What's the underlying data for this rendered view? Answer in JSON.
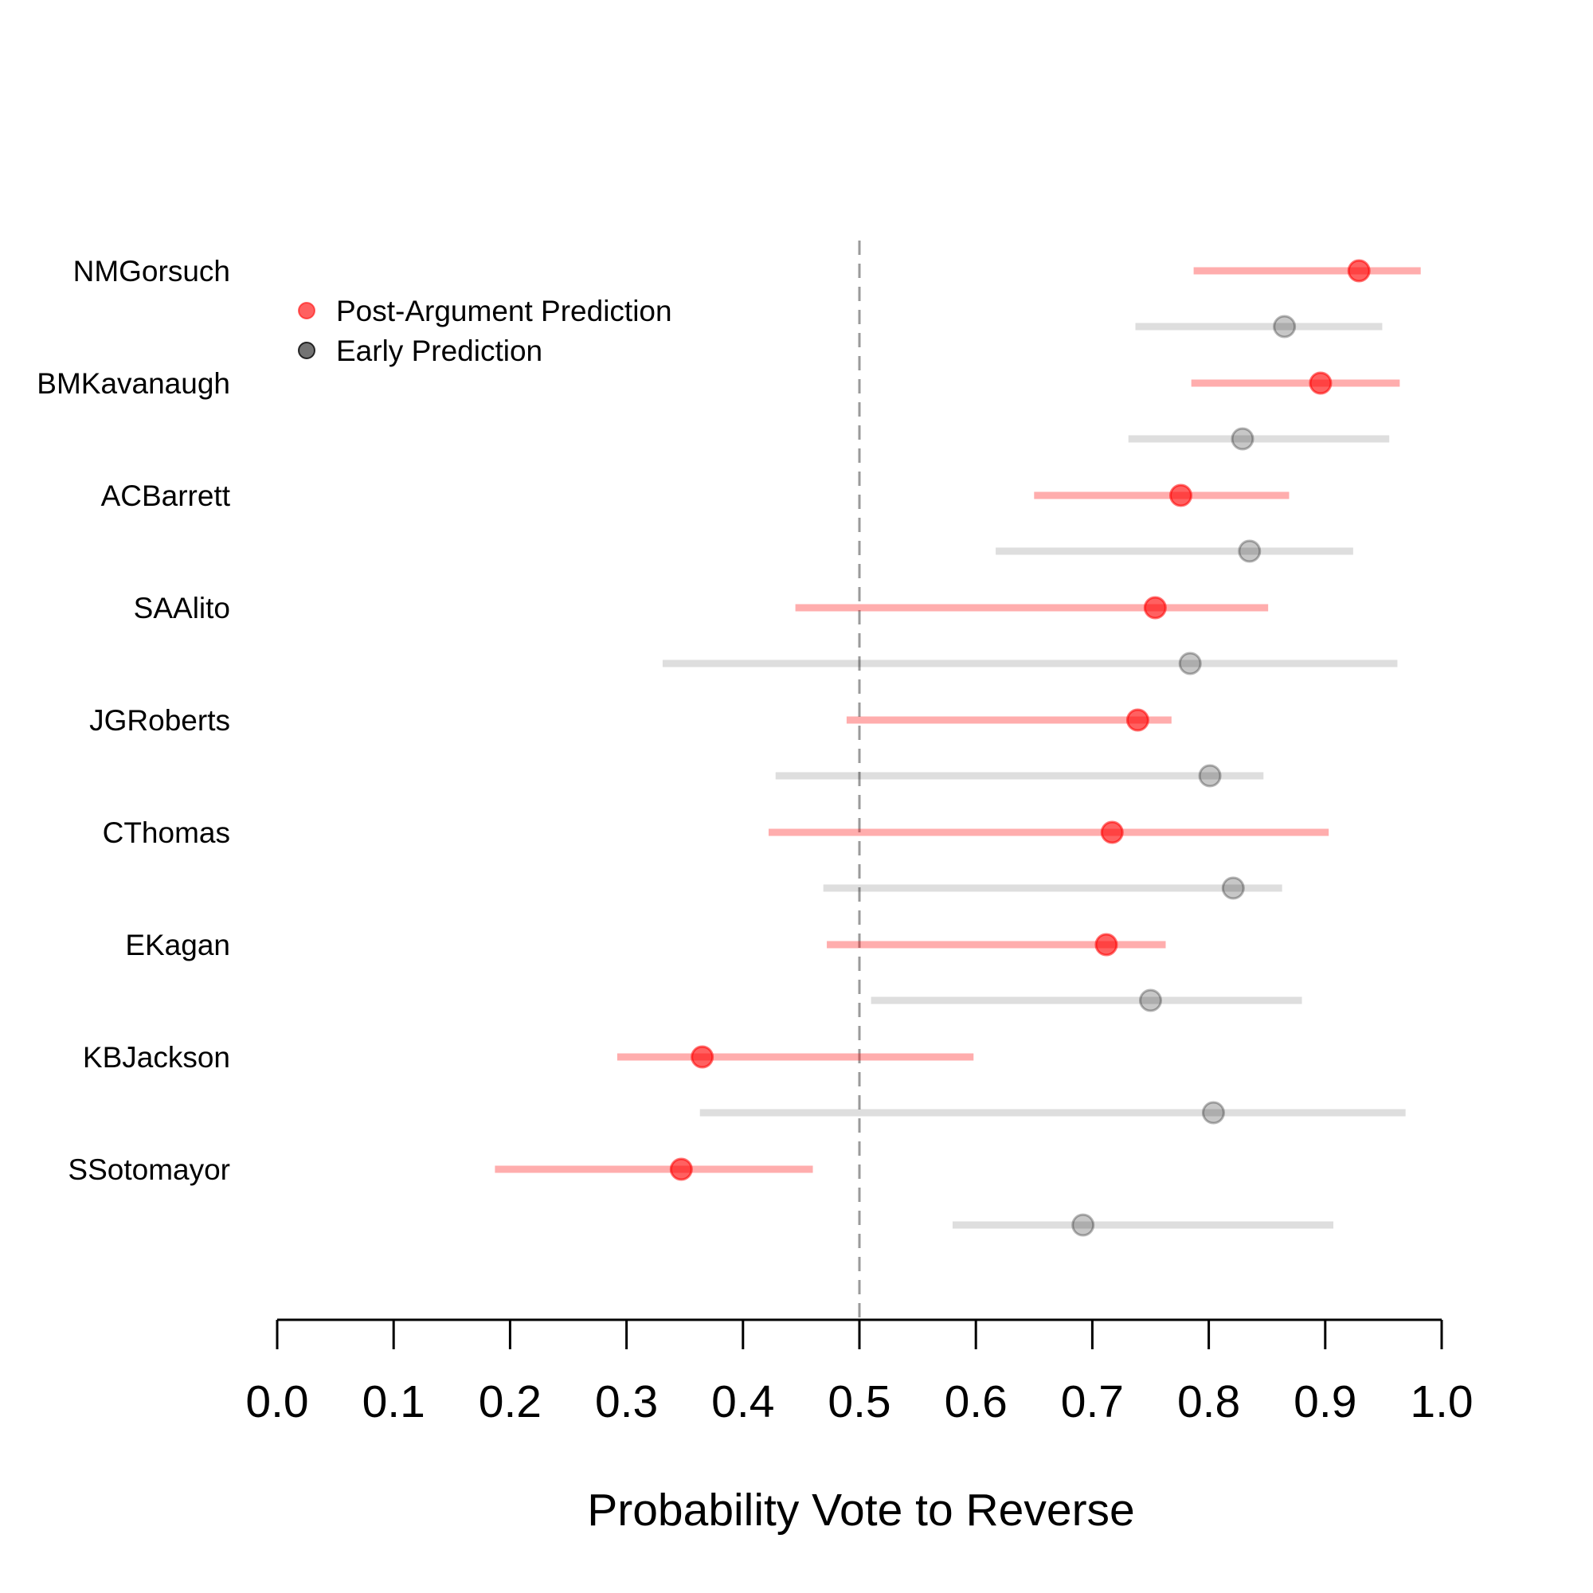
{
  "chart_data": {
    "type": "dot-interval",
    "xlabel": "Probability Vote to Reverse",
    "xlim": [
      0.0,
      1.0
    ],
    "xticks": [
      "0.0",
      "0.1",
      "0.2",
      "0.3",
      "0.4",
      "0.5",
      "0.6",
      "0.7",
      "0.8",
      "0.9",
      "1.0"
    ],
    "reference_line": 0.5,
    "legend_position": "top-left",
    "series": [
      {
        "key": "post",
        "name": "Post-Argument Prediction",
        "color": "#ff0000"
      },
      {
        "key": "early",
        "name": "Early Prediction",
        "color": "#000000"
      }
    ],
    "justices": [
      {
        "name": "NMGorsuch",
        "post": {
          "estimate": 0.929,
          "low": 0.787,
          "high": 0.982
        },
        "early": {
          "estimate": 0.865,
          "low": 0.737,
          "high": 0.949
        }
      },
      {
        "name": "BMKavanaugh",
        "post": {
          "estimate": 0.896,
          "low": 0.785,
          "high": 0.964
        },
        "early": {
          "estimate": 0.829,
          "low": 0.731,
          "high": 0.955
        }
      },
      {
        "name": "ACBarrett",
        "post": {
          "estimate": 0.776,
          "low": 0.65,
          "high": 0.869
        },
        "early": {
          "estimate": 0.835,
          "low": 0.617,
          "high": 0.924
        }
      },
      {
        "name": "SAAlito",
        "post": {
          "estimate": 0.754,
          "low": 0.445,
          "high": 0.851
        },
        "early": {
          "estimate": 0.784,
          "low": 0.331,
          "high": 0.962
        }
      },
      {
        "name": "JGRoberts",
        "post": {
          "estimate": 0.739,
          "low": 0.489,
          "high": 0.768
        },
        "early": {
          "estimate": 0.801,
          "low": 0.428,
          "high": 0.847
        }
      },
      {
        "name": "CThomas",
        "post": {
          "estimate": 0.717,
          "low": 0.422,
          "high": 0.903
        },
        "early": {
          "estimate": 0.821,
          "low": 0.469,
          "high": 0.863
        }
      },
      {
        "name": "EKagan",
        "post": {
          "estimate": 0.712,
          "low": 0.472,
          "high": 0.763
        },
        "early": {
          "estimate": 0.75,
          "low": 0.51,
          "high": 0.88
        }
      },
      {
        "name": "KBJackson",
        "post": {
          "estimate": 0.365,
          "low": 0.292,
          "high": 0.598
        },
        "early": {
          "estimate": 0.804,
          "low": 0.363,
          "high": 0.969
        }
      },
      {
        "name": "SSotomayor",
        "post": {
          "estimate": 0.347,
          "low": 0.187,
          "high": 0.46
        },
        "early": {
          "estimate": 0.692,
          "low": 0.58,
          "high": 0.907
        }
      }
    ]
  }
}
